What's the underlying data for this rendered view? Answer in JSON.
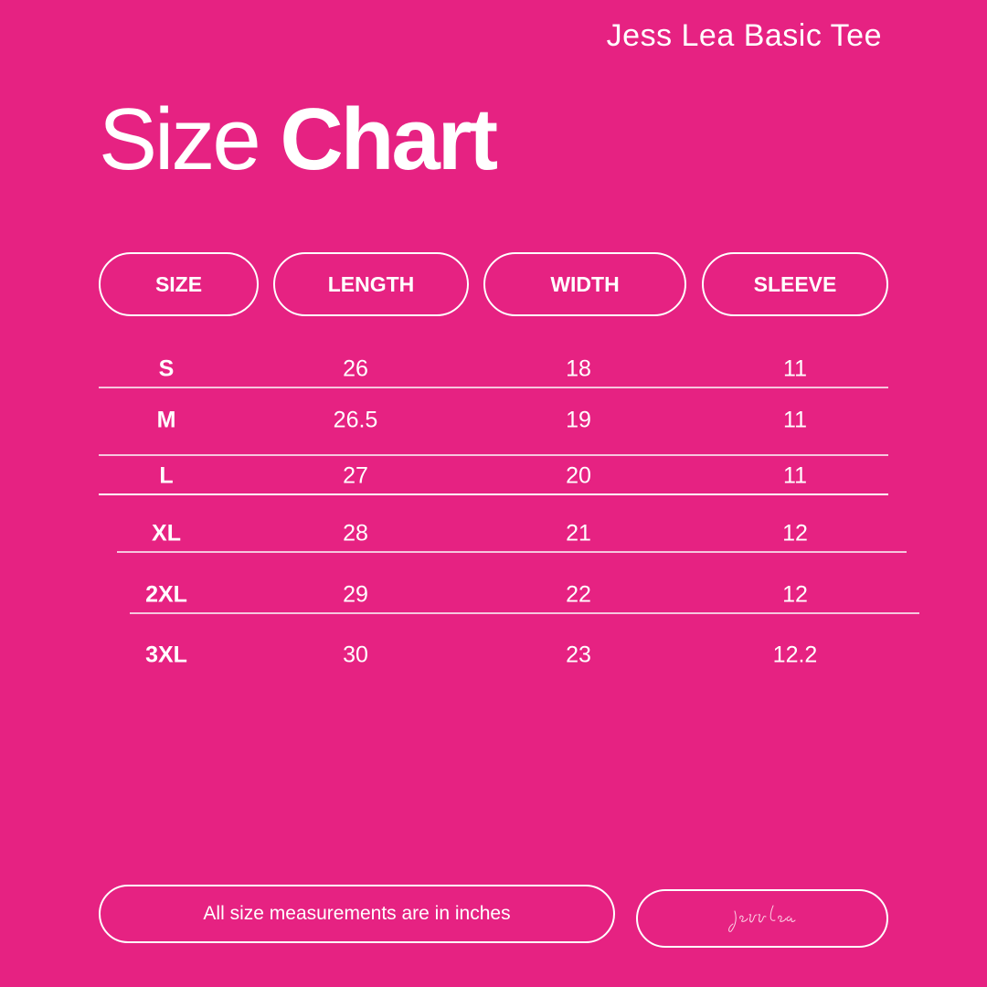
{
  "brand": "Jess Lea Basic Tee",
  "title": {
    "light": "Size",
    "bold": "Chart"
  },
  "headers": [
    "SIZE",
    "LENGTH",
    "WIDTH",
    "SLEEVE"
  ],
  "rows": [
    [
      "S",
      "26",
      "18",
      "11"
    ],
    [
      "M",
      "26.5",
      "19",
      "11"
    ],
    [
      "L",
      "27",
      "20",
      "11"
    ],
    [
      "XL",
      "28",
      "21",
      "12"
    ],
    [
      "2XL",
      "29",
      "22",
      "12"
    ],
    [
      "3XL",
      "30",
      "23",
      "12.2"
    ]
  ],
  "footer_note": "All size measurements are in inches",
  "signature": "jess lea",
  "colors": {
    "background": "#E62282",
    "foreground": "#FFFFFF"
  }
}
